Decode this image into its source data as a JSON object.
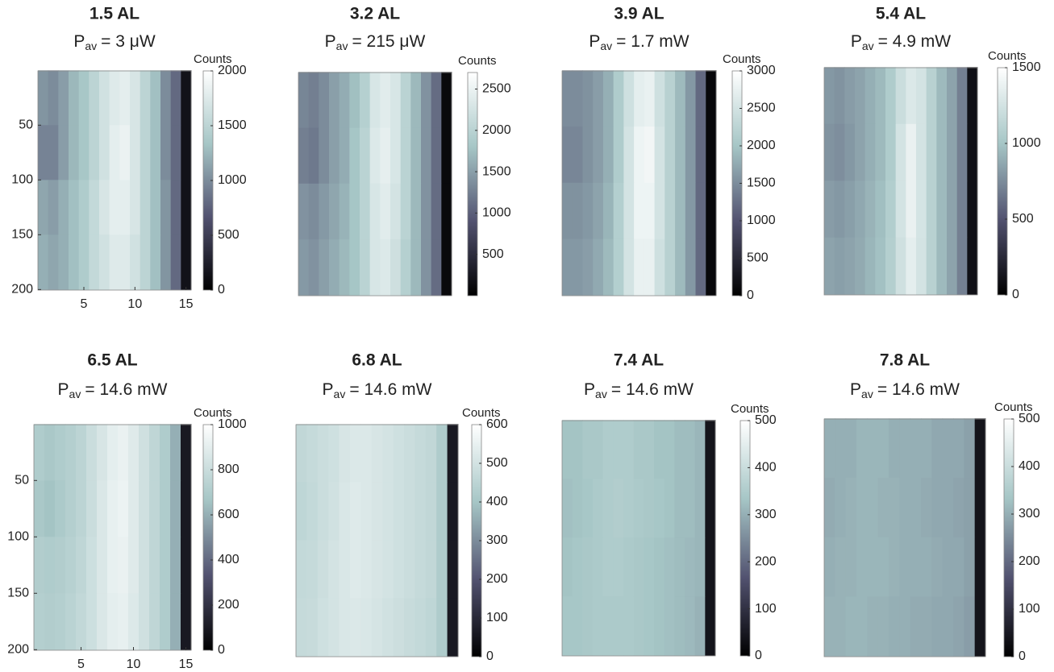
{
  "chart_data": [
    {
      "type": "heatmap",
      "title": "1.5 AL",
      "power": {
        "symbol": "P",
        "subscript": "av",
        "text": "= 3 μW"
      },
      "x": [
        1,
        2,
        3,
        4,
        5,
        6,
        7,
        8,
        9,
        10,
        11,
        12,
        13,
        14,
        15
      ],
      "y": [
        25,
        75,
        125,
        175
      ],
      "xlim": [
        0.5,
        15.5
      ],
      "ylim": [
        0.5,
        200.5
      ],
      "yreverse": true,
      "xticks": [
        5,
        10,
        15
      ],
      "yticks": [
        50,
        100,
        150,
        200
      ],
      "values": [
        [
          1050,
          1000,
          1100,
          1250,
          1350,
          1500,
          1650,
          1750,
          1800,
          1700,
          1500,
          1300,
          1000,
          800,
          150
        ],
        [
          950,
          950,
          1100,
          1250,
          1350,
          1500,
          1650,
          1800,
          1850,
          1700,
          1500,
          1300,
          1000,
          800,
          150
        ],
        [
          1150,
          1100,
          1200,
          1300,
          1400,
          1550,
          1700,
          1800,
          1800,
          1700,
          1500,
          1300,
          1050,
          800,
          150
        ],
        [
          1200,
          1150,
          1200,
          1300,
          1400,
          1550,
          1650,
          1750,
          1750,
          1650,
          1500,
          1300,
          1050,
          800,
          150
        ]
      ],
      "colormap": [
        "#000000",
        "#525270",
        "#a6c6c6",
        "#ffffff"
      ],
      "colorbar": {
        "label": "Counts",
        "lim": [
          0,
          2000
        ],
        "ticks": [
          0,
          500,
          1000,
          1500,
          2000
        ]
      }
    },
    {
      "type": "heatmap",
      "title": "3.2 AL",
      "power": {
        "symbol": "P",
        "subscript": "av",
        "text": "= 215 μW"
      },
      "x": [
        1,
        2,
        3,
        4,
        5,
        6,
        7,
        8,
        9,
        10,
        11,
        12,
        13,
        14,
        15
      ],
      "y": [
        25,
        75,
        125,
        175
      ],
      "xlim": [
        0.5,
        15.5
      ],
      "ylim": [
        0.5,
        200.5
      ],
      "yreverse": true,
      "values": [
        [
          1300,
          1250,
          1350,
          1500,
          1600,
          1750,
          1950,
          2300,
          2400,
          2300,
          2000,
          1700,
          1400,
          1100,
          100
        ],
        [
          1250,
          1200,
          1350,
          1500,
          1600,
          1800,
          2000,
          2350,
          2450,
          2300,
          2000,
          1700,
          1400,
          1100,
          100
        ],
        [
          1400,
          1350,
          1450,
          1550,
          1650,
          1800,
          2000,
          2300,
          2400,
          2250,
          2000,
          1700,
          1400,
          1100,
          100
        ],
        [
          1450,
          1400,
          1500,
          1600,
          1700,
          1800,
          2000,
          2300,
          2350,
          2200,
          1950,
          1700,
          1400,
          1100,
          100
        ]
      ],
      "colormap": [
        "#000000",
        "#525270",
        "#a6c6c6",
        "#ffffff"
      ],
      "colorbar": {
        "label": "Counts",
        "lim": [
          0,
          2700
        ],
        "ticks": [
          500,
          1000,
          1500,
          2000,
          2500
        ]
      }
    },
    {
      "type": "heatmap",
      "title": "3.9 AL",
      "power": {
        "symbol": "P",
        "subscript": "av",
        "text": "= 1.7 mW"
      },
      "x": [
        1,
        2,
        3,
        4,
        5,
        6,
        7,
        8,
        9,
        10,
        11,
        12,
        13,
        14,
        15
      ],
      "y": [
        25,
        75,
        125,
        175
      ],
      "xlim": [
        0.5,
        15.5
      ],
      "ylim": [
        0.5,
        200.5
      ],
      "yreverse": true,
      "values": [
        [
          1500,
          1500,
          1550,
          1650,
          1800,
          2100,
          2450,
          2700,
          2750,
          2450,
          2200,
          1900,
          1600,
          1200,
          100
        ],
        [
          1450,
          1450,
          1550,
          1650,
          1800,
          2100,
          2500,
          2800,
          2850,
          2500,
          2200,
          1900,
          1600,
          1200,
          100
        ],
        [
          1550,
          1550,
          1600,
          1700,
          1850,
          2150,
          2500,
          2800,
          2800,
          2500,
          2200,
          1900,
          1600,
          1200,
          100
        ],
        [
          1600,
          1600,
          1650,
          1750,
          1900,
          2150,
          2500,
          2750,
          2750,
          2450,
          2200,
          1900,
          1600,
          1200,
          100
        ]
      ],
      "colormap": [
        "#000000",
        "#525270",
        "#a6c6c6",
        "#ffffff"
      ],
      "colorbar": {
        "label": "Counts",
        "lim": [
          0,
          3000
        ],
        "ticks": [
          0,
          500,
          1000,
          1500,
          2000,
          2500,
          3000
        ]
      }
    },
    {
      "type": "heatmap",
      "title": "5.4 AL",
      "power": {
        "symbol": "P",
        "subscript": "av",
        "text": "= 4.9 mW"
      },
      "x": [
        1,
        2,
        3,
        4,
        5,
        6,
        7,
        8,
        9,
        10,
        11,
        12,
        13,
        14,
        15
      ],
      "y": [
        25,
        75,
        125,
        175
      ],
      "xlim": [
        0.5,
        15.5
      ],
      "ylim": [
        0.5,
        200.5
      ],
      "yreverse": true,
      "values": [
        [
          800,
          780,
          820,
          850,
          900,
          950,
          1050,
          1200,
          1300,
          1250,
          1100,
          950,
          850,
          700,
          100
        ],
        [
          780,
          760,
          800,
          850,
          900,
          950,
          1050,
          1250,
          1380,
          1250,
          1100,
          950,
          850,
          700,
          100
        ],
        [
          820,
          800,
          830,
          870,
          920,
          970,
          1070,
          1250,
          1380,
          1260,
          1100,
          950,
          850,
          700,
          100
        ],
        [
          850,
          830,
          850,
          880,
          930,
          980,
          1080,
          1230,
          1350,
          1250,
          1100,
          950,
          850,
          700,
          100
        ]
      ],
      "colormap": [
        "#000000",
        "#525270",
        "#a6c6c6",
        "#ffffff"
      ],
      "colorbar": {
        "label": "Counts",
        "lim": [
          0,
          1500
        ],
        "ticks": [
          0,
          500,
          1000,
          1500
        ]
      }
    },
    {
      "type": "heatmap",
      "title": "6.5 AL",
      "power": {
        "symbol": "P",
        "subscript": "av",
        "text": "= 14.6 mW"
      },
      "x": [
        1,
        2,
        3,
        4,
        5,
        6,
        7,
        8,
        9,
        10,
        11,
        12,
        13,
        14,
        15
      ],
      "y": [
        25,
        75,
        125,
        175
      ],
      "xlim": [
        0.5,
        15.5
      ],
      "ylim": [
        0.5,
        200.5
      ],
      "yreverse": true,
      "xticks": [
        5,
        10,
        15
      ],
      "yticks": [
        50,
        100,
        150,
        200
      ],
      "values": [
        [
          700,
          680,
          700,
          720,
          750,
          800,
          850,
          900,
          920,
          880,
          820,
          760,
          700,
          600,
          100
        ],
        [
          680,
          660,
          690,
          720,
          750,
          800,
          860,
          910,
          930,
          880,
          820,
          760,
          700,
          600,
          100
        ],
        [
          710,
          700,
          710,
          730,
          760,
          810,
          860,
          910,
          920,
          880,
          820,
          760,
          700,
          600,
          100
        ],
        [
          720,
          710,
          720,
          740,
          770,
          810,
          860,
          900,
          910,
          870,
          820,
          760,
          700,
          600,
          100
        ]
      ],
      "colormap": [
        "#000000",
        "#525270",
        "#a6c6c6",
        "#ffffff"
      ],
      "colorbar": {
        "label": "Counts",
        "lim": [
          0,
          1000
        ],
        "ticks": [
          0,
          200,
          400,
          600,
          800,
          1000
        ]
      }
    },
    {
      "type": "heatmap",
      "title": "6.8 AL",
      "power": {
        "symbol": "P",
        "subscript": "av",
        "text": "= 14.6 mW"
      },
      "x": [
        1,
        2,
        3,
        4,
        5,
        6,
        7,
        8,
        9,
        10,
        11,
        12,
        13,
        14,
        15
      ],
      "y": [
        25,
        75,
        125,
        175
      ],
      "xlim": [
        0.5,
        15.5
      ],
      "ylim": [
        0.5,
        200.5
      ],
      "yreverse": true,
      "values": [
        [
          460,
          470,
          480,
          490,
          510,
          520,
          520,
          510,
          500,
          490,
          480,
          470,
          460,
          420,
          60
        ],
        [
          455,
          465,
          480,
          495,
          515,
          525,
          520,
          510,
          500,
          490,
          480,
          470,
          460,
          420,
          60
        ],
        [
          465,
          470,
          485,
          500,
          515,
          525,
          520,
          510,
          500,
          490,
          480,
          470,
          460,
          420,
          60
        ],
        [
          470,
          475,
          490,
          500,
          515,
          520,
          515,
          505,
          495,
          485,
          475,
          465,
          455,
          420,
          60
        ]
      ],
      "colormap": [
        "#000000",
        "#525270",
        "#a6c6c6",
        "#ffffff"
      ],
      "colorbar": {
        "label": "Counts",
        "lim": [
          0,
          600
        ],
        "ticks": [
          0,
          100,
          200,
          300,
          400,
          500,
          600
        ]
      }
    },
    {
      "type": "heatmap",
      "title": "7.4 AL",
      "power": {
        "symbol": "P",
        "subscript": "av",
        "text": "= 14.6 mW"
      },
      "x": [
        1,
        2,
        3,
        4,
        5,
        6,
        7,
        8,
        9,
        10,
        11,
        12,
        13,
        14,
        15
      ],
      "y": [
        25,
        75,
        125,
        175
      ],
      "xlim": [
        0.5,
        15.5
      ],
      "ylim": [
        0.5,
        200.5
      ],
      "yreverse": true,
      "values": [
        [
          330,
          330,
          340,
          340,
          350,
          350,
          350,
          340,
          340,
          330,
          330,
          320,
          320,
          310,
          40
        ],
        [
          325,
          330,
          335,
          345,
          350,
          355,
          350,
          345,
          340,
          335,
          330,
          320,
          320,
          310,
          40
        ],
        [
          330,
          335,
          340,
          345,
          350,
          350,
          345,
          340,
          335,
          330,
          325,
          320,
          315,
          310,
          40
        ],
        [
          335,
          335,
          340,
          345,
          345,
          345,
          345,
          340,
          335,
          330,
          325,
          320,
          315,
          305,
          40
        ]
      ],
      "colormap": [
        "#000000",
        "#525270",
        "#a6c6c6",
        "#ffffff"
      ],
      "colorbar": {
        "label": "Counts",
        "lim": [
          0,
          500
        ],
        "ticks": [
          0,
          100,
          200,
          300,
          400,
          500
        ]
      }
    },
    {
      "type": "heatmap",
      "title": "7.8 AL",
      "power": {
        "symbol": "P",
        "subscript": "av",
        "text": "= 14.6 mW"
      },
      "x": [
        1,
        2,
        3,
        4,
        5,
        6,
        7,
        8,
        9,
        10,
        11,
        12,
        13,
        14,
        15
      ],
      "y": [
        25,
        75,
        125,
        175
      ],
      "xlim": [
        0.5,
        15.5
      ],
      "ylim": [
        0.5,
        200.5
      ],
      "yreverse": true,
      "values": [
        [
          300,
          300,
          300,
          310,
          310,
          310,
          300,
          300,
          300,
          300,
          290,
          290,
          290,
          280,
          40
        ],
        [
          295,
          300,
          305,
          310,
          310,
          305,
          305,
          300,
          300,
          295,
          290,
          290,
          285,
          280,
          40
        ],
        [
          300,
          305,
          305,
          310,
          310,
          310,
          305,
          300,
          300,
          300,
          295,
          290,
          290,
          280,
          40
        ],
        [
          305,
          305,
          310,
          310,
          305,
          305,
          300,
          300,
          295,
          295,
          290,
          290,
          285,
          275,
          40
        ]
      ],
      "colormap": [
        "#000000",
        "#525270",
        "#a6c6c6",
        "#ffffff"
      ],
      "colorbar": {
        "label": "Counts",
        "lim": [
          0,
          500
        ],
        "ticks": [
          0,
          100,
          200,
          300,
          400,
          500
        ]
      }
    }
  ]
}
